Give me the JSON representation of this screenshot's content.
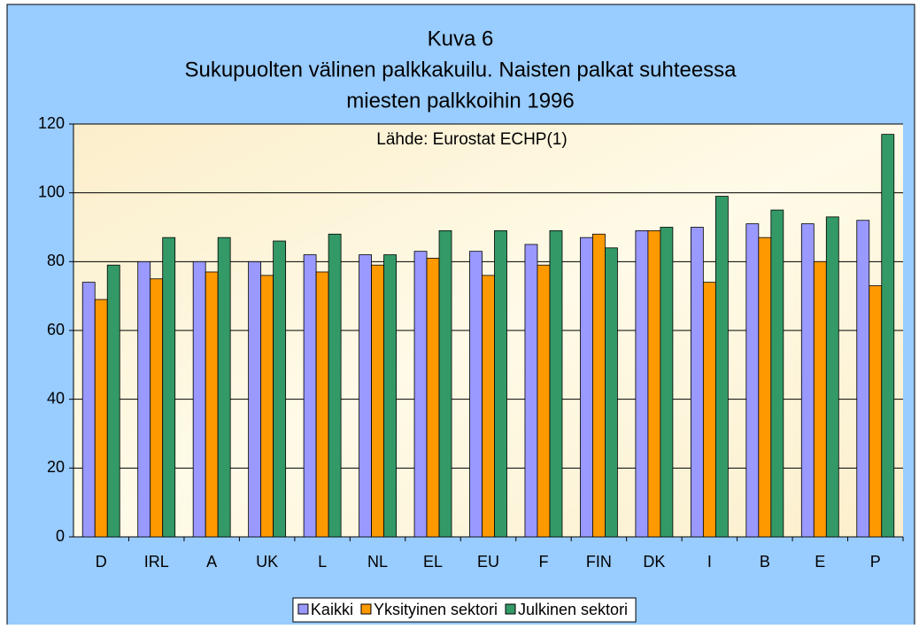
{
  "chart_data": {
    "type": "bar",
    "title": [
      "Kuva 6",
      "Sukupuolten välinen palkkakuilu. Naisten palkat suhteessa",
      "miesten palkkoihin 1996"
    ],
    "annotation": "Lähde: Eurostat ECHP(1)",
    "categories": [
      "D",
      "IRL",
      "A",
      "UK",
      "L",
      "NL",
      "EL",
      "EU",
      "F",
      "FIN",
      "DK",
      "I",
      "B",
      "E",
      "P"
    ],
    "series": [
      {
        "name": "Kaikki",
        "color": "#9999ff",
        "values": [
          74,
          80,
          80,
          80,
          82,
          82,
          83,
          83,
          85,
          87,
          89,
          90,
          91,
          91,
          92
        ]
      },
      {
        "name": "Yksityinen sektori",
        "color": "#ff9900",
        "values": [
          69,
          75,
          77,
          76,
          77,
          79,
          81,
          76,
          79,
          88,
          89,
          74,
          87,
          80,
          73
        ]
      },
      {
        "name": "Julkinen sektori",
        "color": "#339966",
        "values": [
          79,
          87,
          87,
          86,
          88,
          82,
          89,
          89,
          89,
          84,
          90,
          99,
          95,
          93,
          117
        ]
      }
    ],
    "ylim": [
      0,
      120
    ],
    "yticks": [
      0,
      20,
      40,
      60,
      80,
      100,
      120
    ],
    "grid": true,
    "legend": "bottom"
  }
}
